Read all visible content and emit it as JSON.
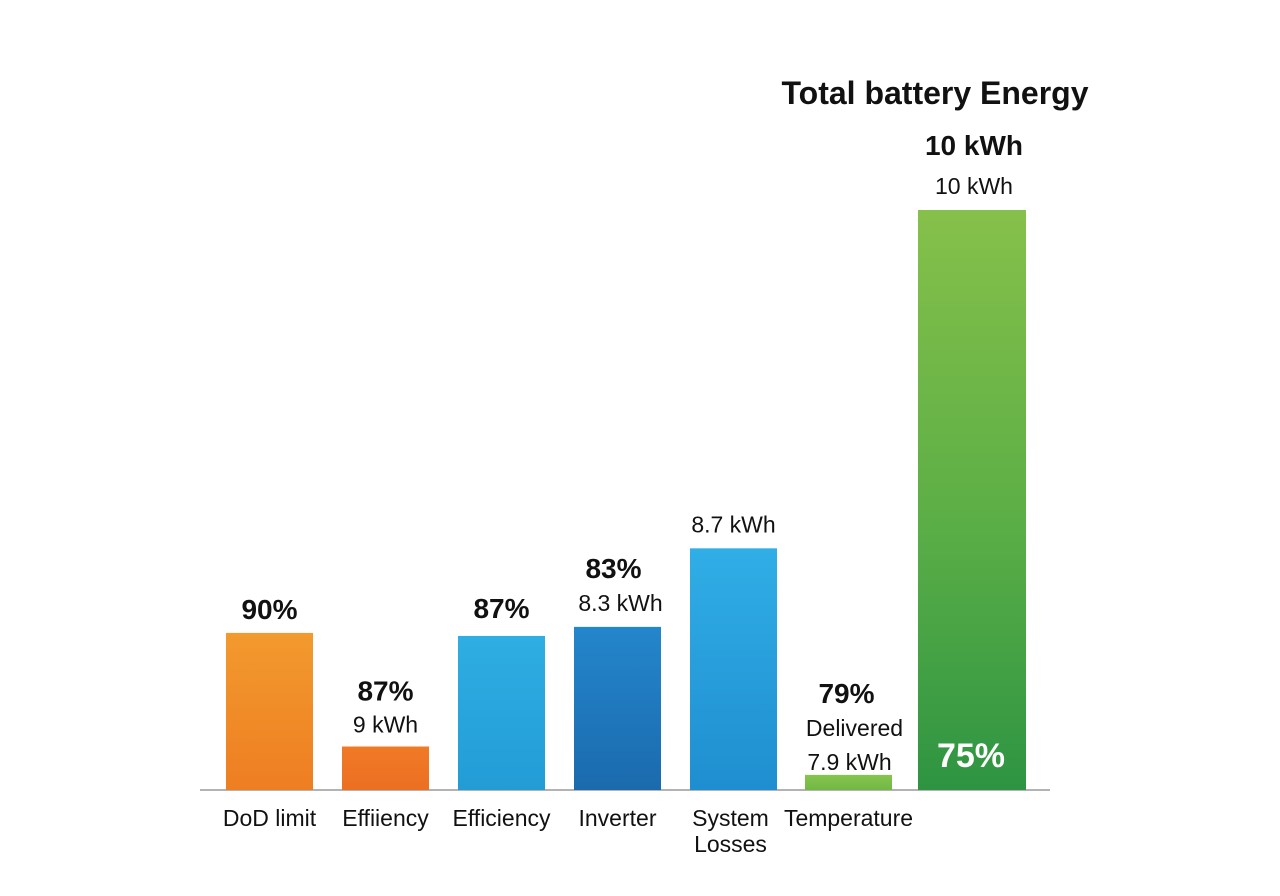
{
  "chart_data": {
    "type": "bar",
    "title": "Total battery Energy",
    "xlabel": "",
    "ylabel": "",
    "ylim": [
      0,
      10
    ],
    "grid": false,
    "categories": [
      "DoD limit",
      "Effiiency",
      "Efficiency",
      "Inverter",
      "System Losses",
      "Temperature",
      ""
    ],
    "values": [
      2.6,
      0.72,
      2.55,
      2.7,
      4.0,
      0.25,
      9.6
    ],
    "bars": [
      {
        "category": "DoD limit",
        "value": 2.6,
        "pct_label": "90%",
        "sub_label": "",
        "inner_label": "",
        "color": "#F08A24"
      },
      {
        "category": "Effiiency",
        "value": 0.72,
        "pct_label": "87%",
        "sub_label": "9 kWh",
        "inner_label": "",
        "color": "#EE7A28"
      },
      {
        "category": "Efficiency",
        "value": 2.55,
        "pct_label": "87%",
        "sub_label": "",
        "inner_label": "",
        "color": "#2AA8DF"
      },
      {
        "category": "Inverter",
        "value": 2.7,
        "pct_label": "83%",
        "sub_label": "8.3 kWh",
        "inner_label": "",
        "color": "#1F7BC0"
      },
      {
        "category": "System Losses",
        "value": 4.0,
        "pct_label": "",
        "sub_label": "8.7 kWh",
        "inner_label": "",
        "color": "#2BA6E2"
      },
      {
        "category": "Temperature",
        "value": 0.25,
        "pct_label": "79%",
        "sub_label": "Delivered 7.9 kWh",
        "inner_label": "",
        "color": "#7DC04A"
      },
      {
        "category": "",
        "value": 9.6,
        "pct_label": "10 kWh",
        "sub_label": "10 kWh",
        "inner_label": "75%",
        "color": "#5DAE46"
      }
    ]
  }
}
